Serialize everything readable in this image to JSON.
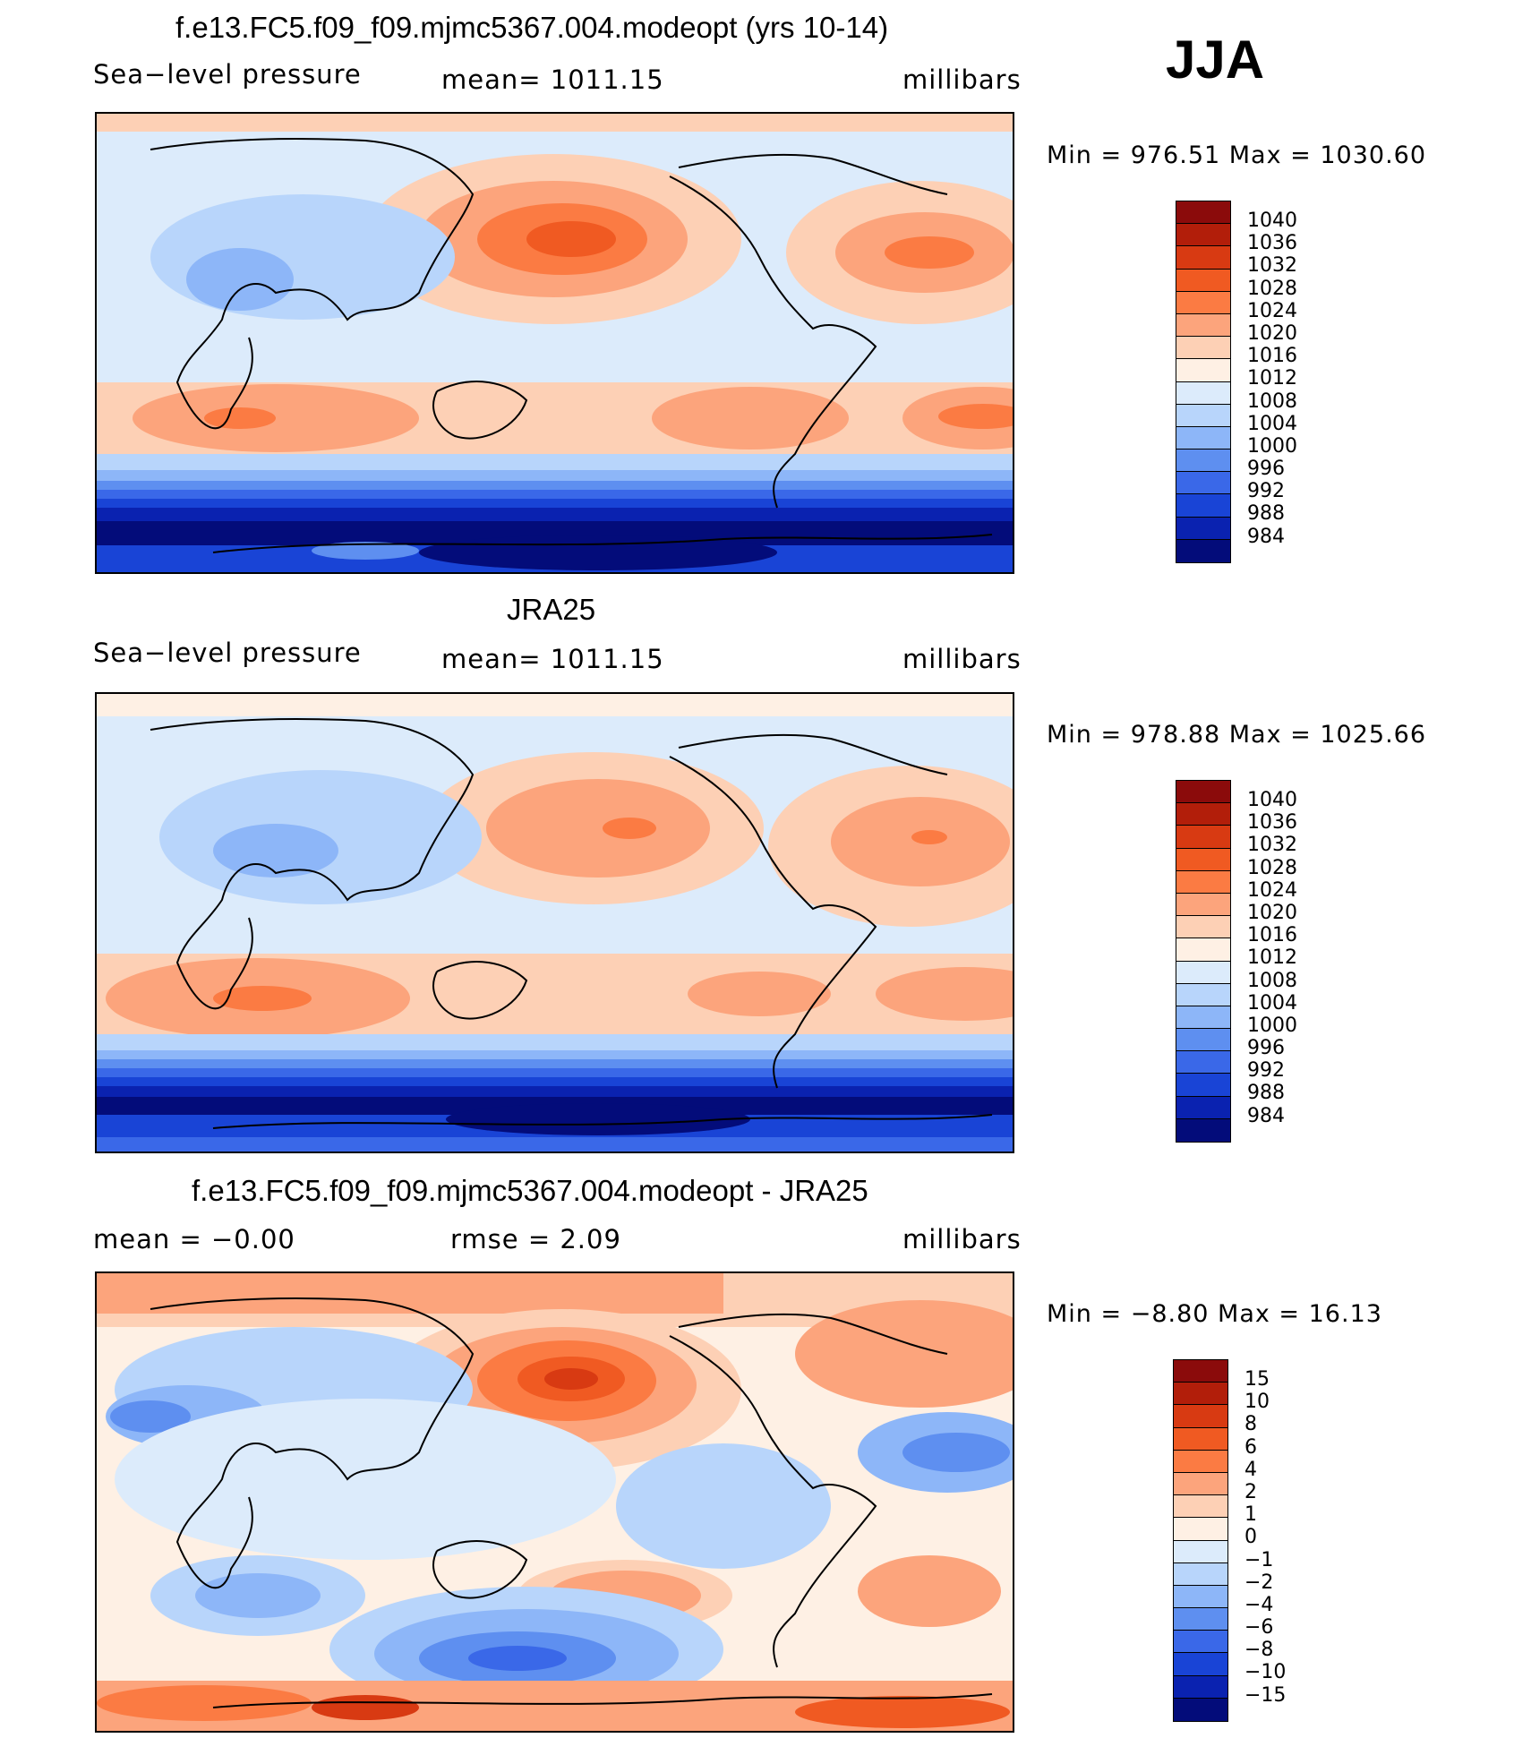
{
  "season": "JJA",
  "panels": [
    {
      "title": "f.e13.FC5.f09_f09.mjmc5367.004.modeopt (yrs 10-14)",
      "left_text": "Sea−level pressure",
      "center_text": "mean=  1011.15",
      "right_text": "millibars",
      "minmax": "Min  =  976.51  Max  =  1030.60",
      "colorbar_labels": [
        "1040",
        "1036",
        "1032",
        "1028",
        "1024",
        "1020",
        "1016",
        "1012",
        "1008",
        "1004",
        "1000",
        "996",
        "992",
        "988",
        "984"
      ],
      "colorbar_colors": [
        "#8b0b0b",
        "#b21e0a",
        "#d83a12",
        "#f05a22",
        "#fb7b43",
        "#fca47c",
        "#fdd0b5",
        "#fef0e4",
        "#dcebfb",
        "#b8d5fb",
        "#8db6f8",
        "#5e8ff0",
        "#3a68e8",
        "#1944d6",
        "#0a22b0",
        "#030c7a"
      ],
      "map_bg": "#dcebfb"
    },
    {
      "title": "JRA25",
      "left_text": "Sea−level pressure",
      "center_text": "mean=  1011.15",
      "right_text": "millibars",
      "minmax": "Min  =  978.88  Max  =  1025.66",
      "colorbar_labels": [
        "1040",
        "1036",
        "1032",
        "1028",
        "1024",
        "1020",
        "1016",
        "1012",
        "1008",
        "1004",
        "1000",
        "996",
        "992",
        "988",
        "984"
      ],
      "colorbar_colors": [
        "#8b0b0b",
        "#b21e0a",
        "#d83a12",
        "#f05a22",
        "#fb7b43",
        "#fca47c",
        "#fdd0b5",
        "#fef0e4",
        "#dcebfb",
        "#b8d5fb",
        "#8db6f8",
        "#5e8ff0",
        "#3a68e8",
        "#1944d6",
        "#0a22b0",
        "#030c7a"
      ],
      "map_bg": "#dcebfb"
    },
    {
      "title": "f.e13.FC5.f09_f09.mjmc5367.004.modeopt - JRA25",
      "left_text": "mean  =    −0.00",
      "center_text": "rmse  =     2.09",
      "right_text": "millibars",
      "minmax": "Min  =    −8.80  Max  =    16.13",
      "colorbar_labels": [
        "15",
        "10",
        "8",
        "6",
        "4",
        "2",
        "1",
        "0",
        "−1",
        "−2",
        "−4",
        "−6",
        "−8",
        "−10",
        "−15"
      ],
      "colorbar_colors": [
        "#8b0b0b",
        "#b21e0a",
        "#d83a12",
        "#f05a22",
        "#fb7b43",
        "#fca47c",
        "#fdd0b5",
        "#fef0e4",
        "#dcebfb",
        "#b8d5fb",
        "#8db6f8",
        "#5e8ff0",
        "#3a68e8",
        "#1944d6",
        "#0a22b0",
        "#030c7a"
      ],
      "map_bg": "#fef0e4"
    }
  ]
}
